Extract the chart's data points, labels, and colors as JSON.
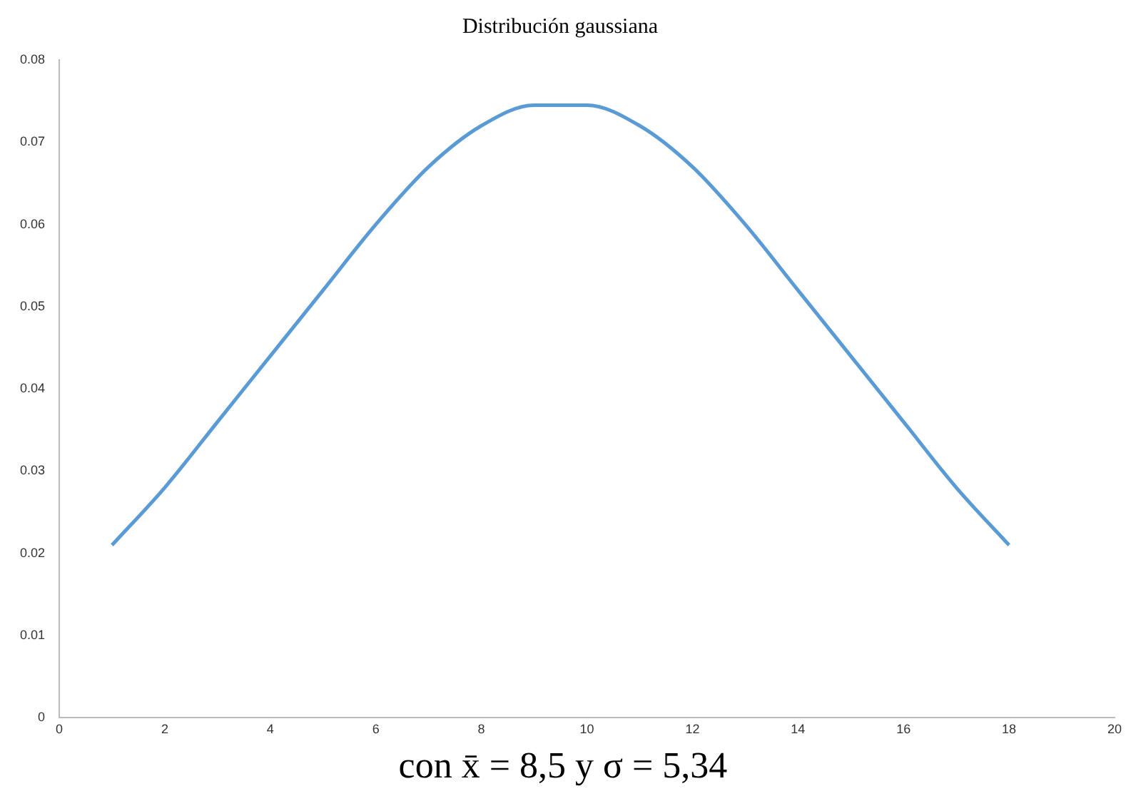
{
  "chart_data": {
    "type": "line",
    "title": "Distribución gaussiana",
    "x": [
      1,
      2,
      3,
      4,
      5,
      6,
      7,
      8,
      9,
      10,
      11,
      12,
      13,
      14,
      15,
      16,
      17,
      18
    ],
    "series": [
      {
        "color": "#5b9bd5",
        "values": [
          0.021,
          0.028,
          0.036,
          0.044,
          0.052,
          0.06,
          0.067,
          0.072,
          0.0745,
          0.0745,
          0.072,
          0.067,
          0.06,
          0.052,
          0.044,
          0.036,
          0.028,
          0.021
        ]
      }
    ],
    "xlim": [
      0,
      20
    ],
    "xticks": [
      0,
      2,
      4,
      6,
      8,
      10,
      12,
      14,
      16,
      18,
      20
    ],
    "ylim": [
      0,
      0.08
    ],
    "yticks": [
      0,
      0.01,
      0.02,
      0.03,
      0.04,
      0.05,
      0.06,
      0.07,
      0.08
    ],
    "grid": false,
    "legend": false,
    "marker": "none",
    "line_style": "solid",
    "annotations": [
      "con x̄ = 8,5 y σ = 5,34"
    ]
  }
}
